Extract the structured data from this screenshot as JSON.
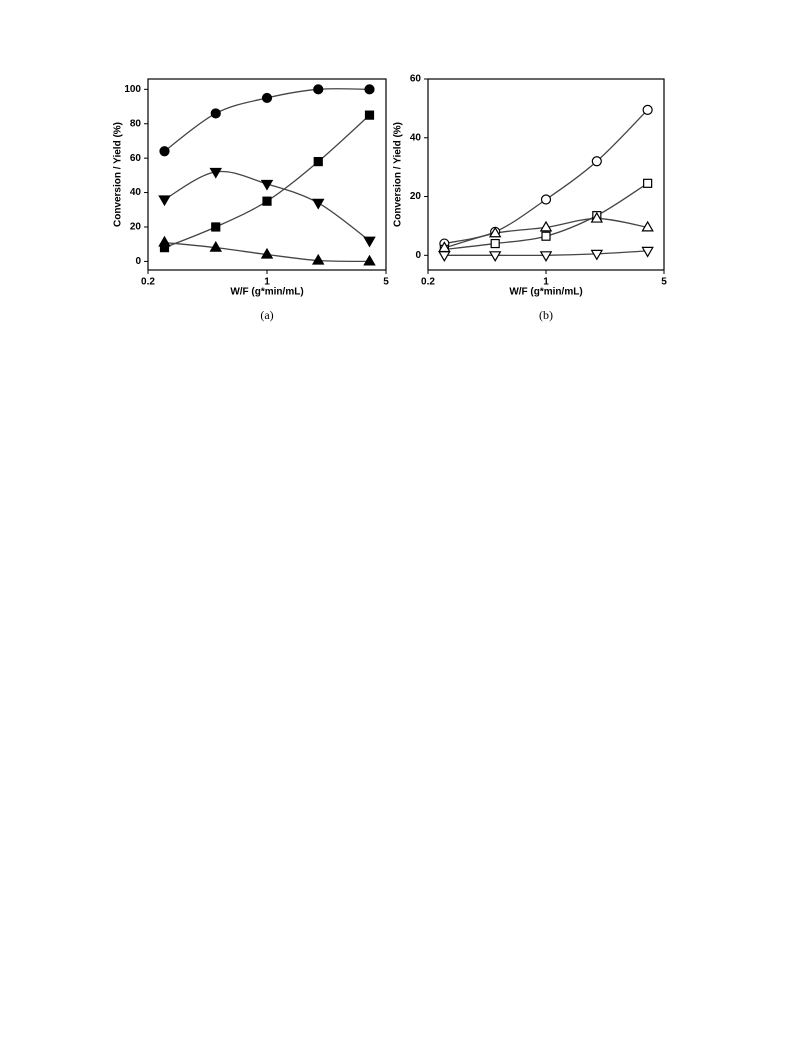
{
  "chart_data": [
    {
      "type": "line",
      "caption": "(a)",
      "xlabel": "W/F (g*min/mL)",
      "ylabel": "Conversion / Yield (%)",
      "xscale": "log",
      "xlim": [
        0.2,
        5
      ],
      "xticks": [
        0.2,
        1,
        5
      ],
      "ylim": [
        -5,
        106
      ],
      "yticks": [
        0,
        20,
        40,
        60,
        80,
        100
      ],
      "x": [
        0.25,
        0.5,
        1,
        2,
        4
      ],
      "series": [
        {
          "marker": "circle",
          "filled": true,
          "color": "#000000",
          "values": [
            64,
            86,
            95,
            100,
            100
          ]
        },
        {
          "marker": "square",
          "filled": true,
          "color": "#000000",
          "values": [
            8,
            20,
            35,
            58,
            85
          ]
        },
        {
          "marker": "triangle-down",
          "filled": true,
          "color": "#000000",
          "values": [
            36,
            52,
            45,
            34,
            12
          ]
        },
        {
          "marker": "triangle-up",
          "filled": true,
          "color": "#000000",
          "values": [
            11,
            8,
            4,
            0.5,
            0
          ]
        }
      ]
    },
    {
      "type": "line",
      "caption": "(b)",
      "xlabel": "W/F (g*min/mL)",
      "ylabel": "Conversion / Yield (%)",
      "xscale": "log",
      "xlim": [
        0.2,
        5
      ],
      "xticks": [
        0.2,
        1,
        5
      ],
      "ylim": [
        -5,
        60
      ],
      "yticks": [
        0,
        20,
        40,
        60
      ],
      "x": [
        0.25,
        0.5,
        1,
        2,
        4
      ],
      "series": [
        {
          "marker": "circle",
          "filled": false,
          "color": "#000000",
          "values": [
            4,
            8,
            19,
            32,
            49.5
          ]
        },
        {
          "marker": "square",
          "filled": false,
          "color": "#000000",
          "values": [
            2,
            4,
            6.5,
            13.5,
            24.5
          ]
        },
        {
          "marker": "triangle-up",
          "filled": false,
          "color": "#000000",
          "values": [
            2.5,
            7.5,
            9.5,
            12.5,
            9.5
          ]
        },
        {
          "marker": "triangle-down",
          "filled": false,
          "color": "#000000",
          "values": [
            0,
            0,
            0,
            0.5,
            1.5
          ]
        }
      ]
    }
  ]
}
